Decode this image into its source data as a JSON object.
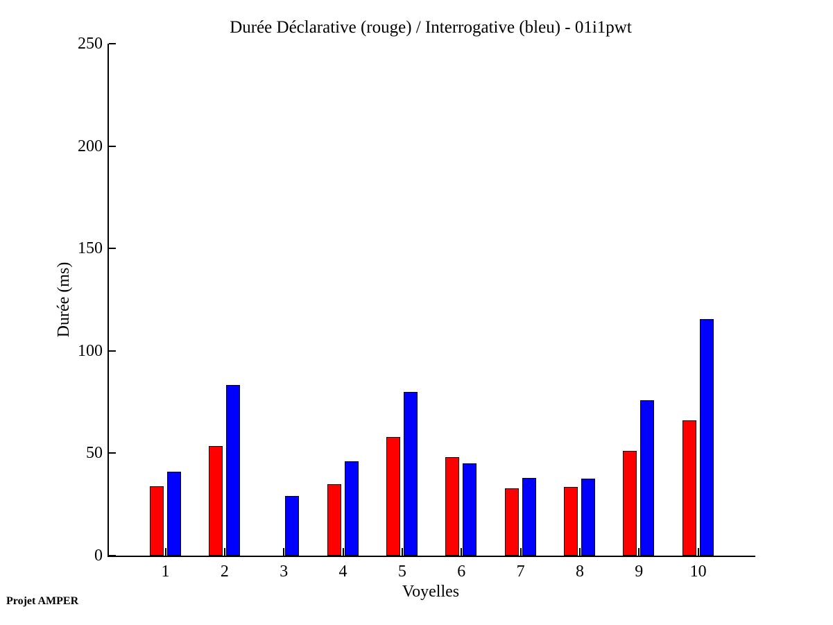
{
  "figure": {
    "background": "#ffffff"
  },
  "footer": {
    "text": "Projet AMPER"
  },
  "chart_data": {
    "type": "bar",
    "title": "Durée Déclarative (rouge) / Interrogative (bleu) - 01i1pwt",
    "xlabel": "Voyelles",
    "ylabel": "Durée (ms)",
    "categories": [
      "1",
      "2",
      "3",
      "4",
      "5",
      "6",
      "7",
      "8",
      "9",
      "10"
    ],
    "series": [
      {
        "name": "Déclarative (rouge)",
        "color": "#ff0000",
        "values": [
          34,
          53.5,
          0,
          35,
          58,
          48,
          33,
          33.5,
          51,
          66
        ]
      },
      {
        "name": "Interrogative (bleu)",
        "color": "#0000ff",
        "values": [
          41,
          83.5,
          29,
          46,
          80,
          45,
          38,
          37.5,
          76,
          115.5
        ]
      }
    ],
    "ylim": [
      0,
      250
    ],
    "yticks": [
      0,
      50,
      100,
      150,
      200,
      250
    ],
    "grid": false,
    "legend_position": "none",
    "bar_edge_color": "#000000"
  }
}
